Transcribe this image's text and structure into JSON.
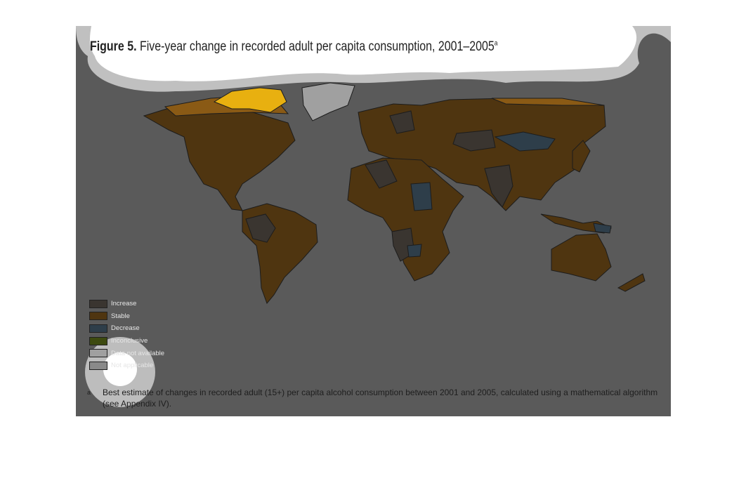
{
  "figure": {
    "label": "Figure 5.",
    "title": "Five-year change in recorded adult per capita consumption, 2001–2005",
    "title_note": "a"
  },
  "legend": [
    {
      "label": "Increase",
      "color": "#3a3530"
    },
    {
      "label": "Stable",
      "color": "#4f3510"
    },
    {
      "label": "Decrease",
      "color": "#2e3e4a"
    },
    {
      "label": "Inconclusive",
      "color": "#3d4a10"
    },
    {
      "label": "Data not available",
      "color": "#a0a0a0"
    },
    {
      "label": "Not applicable",
      "color": "#8a8a8a"
    }
  ],
  "footnote": {
    "marker": "a",
    "text": "Best estimate of changes in recorded adult (15+) per capita alcohol consumption between 2001 and 2005, calculated using a mathematical algorithm (see Appendix IV)."
  }
}
